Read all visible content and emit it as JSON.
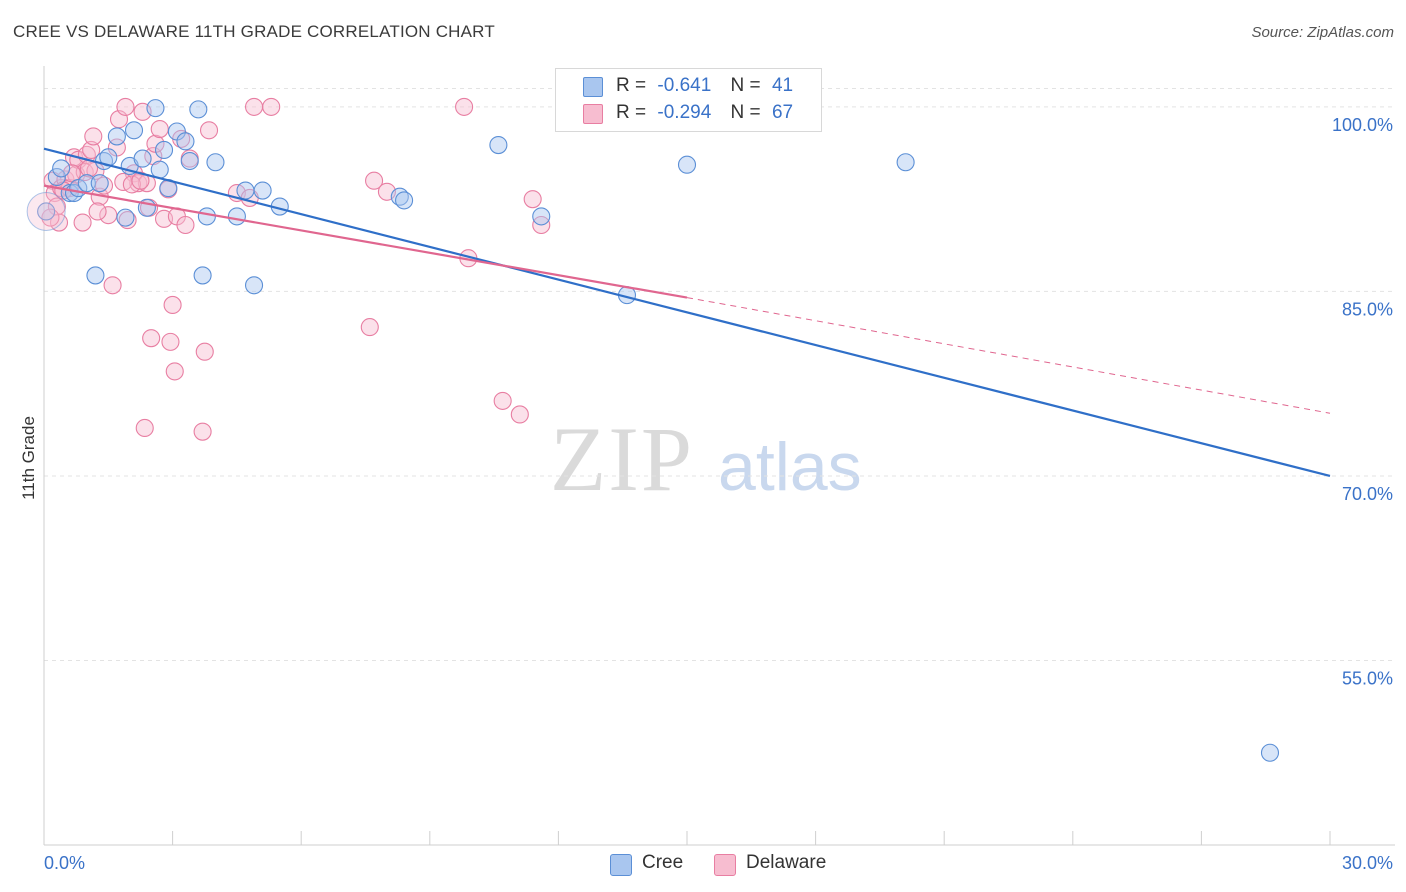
{
  "header": {
    "title": "CREE VS DELAWARE 11TH GRADE CORRELATION CHART",
    "source": "Source: ZipAtlas.com"
  },
  "legend": {
    "cree": {
      "r_label": "R =",
      "r_value": "-0.641",
      "n_label": "N =",
      "n_value": "41"
    },
    "delaware": {
      "r_label": "R =",
      "r_value": "-0.294",
      "n_label": "N =",
      "n_value": "67"
    }
  },
  "bottom_legend": {
    "cree": "Cree",
    "delaware": "Delaware"
  },
  "watermark": {
    "zip": "ZIP",
    "atlas": "atlas"
  },
  "colors": {
    "cree": "#5b8fd6",
    "cree_fill": "#a9c6ef",
    "cree_line": "#2f6fc8",
    "delaware": "#e87ea2",
    "delaware_fill": "#f7bdd0",
    "delaware_line": "#e0668f",
    "axis_label": "#3a72c8",
    "grid": "#e3e3e3"
  },
  "chart_data": {
    "type": "scatter",
    "title": "CREE VS DELAWARE 11TH GRADE CORRELATION CHART",
    "xlabel": "",
    "ylabel": "11th Grade",
    "xlim": [
      0,
      30
    ],
    "ylim": [
      40,
      103
    ],
    "x_tick_labels": [
      "0.0%",
      "30.0%"
    ],
    "y_ticks": [
      55,
      70,
      85,
      100
    ],
    "y_tick_labels": [
      "55.0%",
      "70.0%",
      "85.0%",
      "100.0%"
    ],
    "series": [
      {
        "name": "Cree",
        "r": -0.641,
        "n": 41,
        "trend": {
          "x0": 0.0,
          "y0": 96.6,
          "x1": 30.0,
          "y1": 70.0
        },
        "points": [
          [
            0.3,
            94.3
          ],
          [
            0.4,
            95.0
          ],
          [
            0.6,
            93.0
          ],
          [
            0.7,
            93.0
          ],
          [
            0.8,
            93.4
          ],
          [
            1.0,
            93.8
          ],
          [
            1.2,
            86.3
          ],
          [
            1.3,
            93.8
          ],
          [
            1.4,
            95.6
          ],
          [
            1.5,
            95.9
          ],
          [
            1.7,
            97.6
          ],
          [
            1.9,
            91.0
          ],
          [
            2.0,
            95.2
          ],
          [
            2.1,
            98.1
          ],
          [
            2.3,
            95.8
          ],
          [
            2.4,
            91.8
          ],
          [
            2.6,
            99.9
          ],
          [
            2.7,
            94.9
          ],
          [
            2.8,
            96.5
          ],
          [
            2.9,
            93.4
          ],
          [
            3.1,
            98.0
          ],
          [
            3.3,
            97.2
          ],
          [
            3.4,
            95.6
          ],
          [
            3.6,
            99.8
          ],
          [
            3.7,
            86.3
          ],
          [
            3.8,
            91.1
          ],
          [
            4.0,
            95.5
          ],
          [
            4.5,
            91.1
          ],
          [
            4.7,
            93.2
          ],
          [
            4.9,
            85.5
          ],
          [
            5.1,
            93.2
          ],
          [
            5.5,
            91.9
          ],
          [
            8.3,
            92.7
          ],
          [
            8.4,
            92.4
          ],
          [
            10.6,
            96.9
          ],
          [
            11.6,
            91.1
          ],
          [
            13.6,
            84.7
          ],
          [
            15.0,
            95.3
          ],
          [
            20.1,
            95.5
          ],
          [
            28.6,
            47.5
          ],
          [
            0.05,
            91.5
          ]
        ]
      },
      {
        "name": "Delaware",
        "r": -0.294,
        "n": 67,
        "trend": {
          "x0": 0.0,
          "y0": 93.6,
          "x1": 15.0,
          "y1": 84.5,
          "dash_x1": 30.0,
          "dash_y1": 75.1
        },
        "points": [
          [
            0.2,
            94.0
          ],
          [
            0.25,
            93.0
          ],
          [
            0.3,
            91.9
          ],
          [
            0.35,
            90.6
          ],
          [
            0.4,
            93.4
          ],
          [
            0.5,
            94.1
          ],
          [
            0.6,
            93.4
          ],
          [
            0.7,
            95.9
          ],
          [
            0.75,
            94.5
          ],
          [
            0.8,
            95.7
          ],
          [
            0.9,
            90.6
          ],
          [
            0.95,
            94.7
          ],
          [
            1.0,
            96.1
          ],
          [
            1.1,
            96.5
          ],
          [
            1.15,
            97.6
          ],
          [
            1.2,
            94.8
          ],
          [
            1.3,
            92.7
          ],
          [
            1.4,
            93.6
          ],
          [
            1.5,
            91.2
          ],
          [
            1.6,
            85.5
          ],
          [
            1.7,
            96.7
          ],
          [
            1.75,
            99.0
          ],
          [
            1.9,
            100.0
          ],
          [
            1.95,
            90.8
          ],
          [
            2.1,
            94.6
          ],
          [
            2.2,
            93.8
          ],
          [
            2.3,
            99.6
          ],
          [
            2.35,
            73.9
          ],
          [
            2.4,
            93.8
          ],
          [
            2.45,
            91.8
          ],
          [
            2.5,
            81.2
          ],
          [
            2.55,
            96.0
          ],
          [
            2.6,
            97.0
          ],
          [
            2.7,
            98.2
          ],
          [
            2.8,
            90.9
          ],
          [
            2.9,
            93.3
          ],
          [
            2.95,
            80.9
          ],
          [
            3.0,
            83.9
          ],
          [
            3.05,
            78.5
          ],
          [
            3.1,
            91.1
          ],
          [
            3.2,
            97.4
          ],
          [
            3.3,
            90.4
          ],
          [
            3.4,
            95.8
          ],
          [
            3.7,
            73.6
          ],
          [
            3.75,
            80.1
          ],
          [
            3.85,
            98.1
          ],
          [
            4.5,
            93.0
          ],
          [
            4.8,
            92.6
          ],
          [
            4.9,
            100.0
          ],
          [
            5.3,
            100.0
          ],
          [
            7.6,
            82.1
          ],
          [
            7.7,
            94.0
          ],
          [
            8.0,
            93.1
          ],
          [
            9.8,
            100.0
          ],
          [
            9.9,
            87.7
          ],
          [
            10.7,
            76.1
          ],
          [
            11.1,
            75.0
          ],
          [
            11.4,
            92.5
          ],
          [
            11.6,
            90.4
          ],
          [
            0.15,
            91.0
          ],
          [
            0.45,
            93.2
          ],
          [
            1.25,
            91.5
          ],
          [
            1.85,
            93.9
          ],
          [
            2.05,
            93.7
          ],
          [
            2.25,
            94.0
          ],
          [
            0.65,
            94.6
          ],
          [
            1.05,
            95.0
          ]
        ]
      }
    ]
  }
}
